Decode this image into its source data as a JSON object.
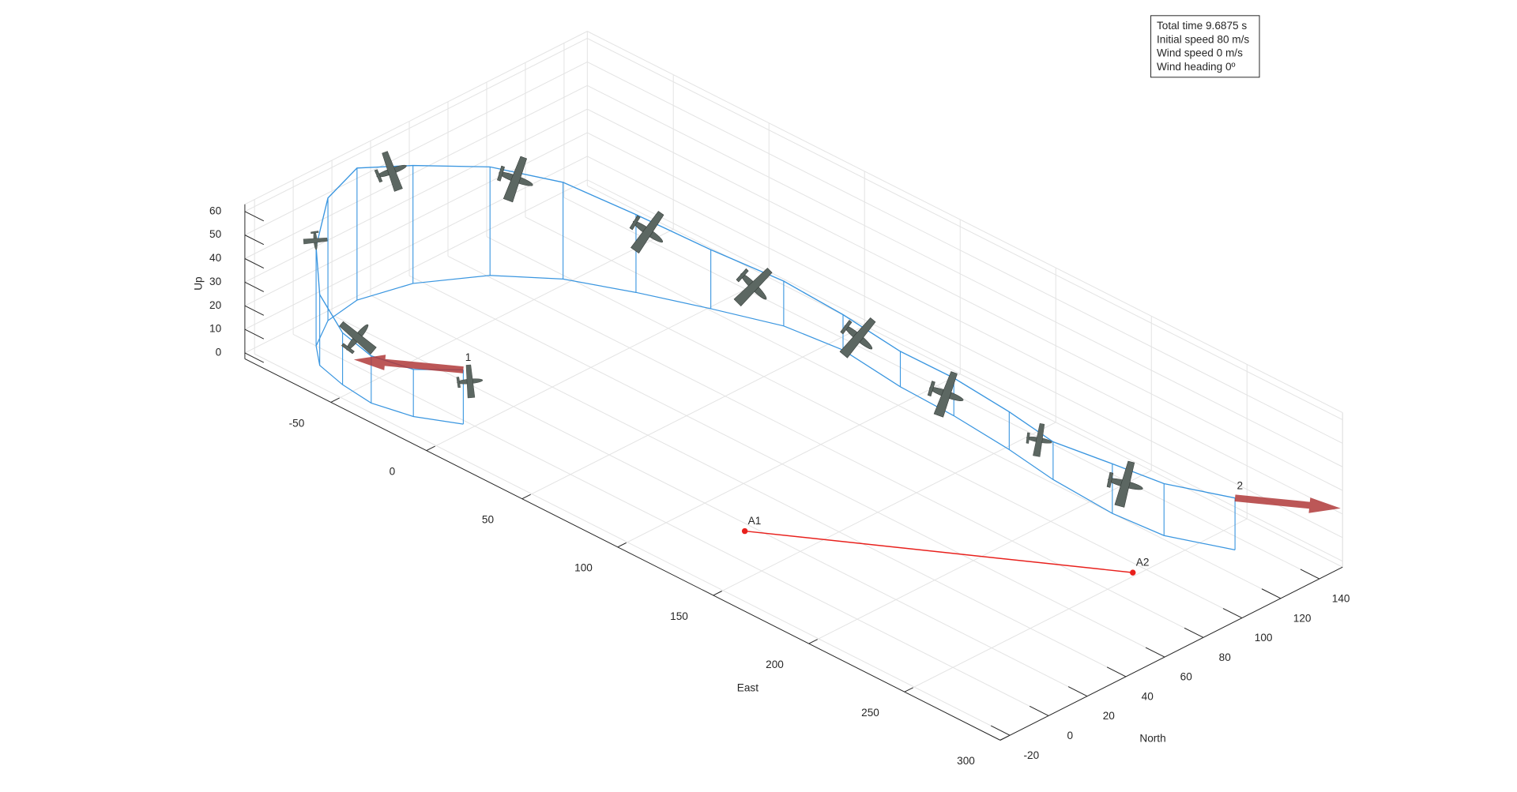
{
  "chart_data": {
    "type": "line3d",
    "xlabel": "East",
    "ylabel": "North",
    "zlabel": "Up",
    "xlim": [
      -95,
      300
    ],
    "ylim": [
      -25,
      152
    ],
    "zlim": [
      -2.5,
      63
    ],
    "xticks": [
      -50,
      0,
      50,
      100,
      150,
      200,
      250,
      300
    ],
    "yticks": [
      -20,
      0,
      20,
      40,
      60,
      80,
      100,
      120,
      140
    ],
    "zticks": [
      0,
      10,
      20,
      30,
      40,
      50,
      60
    ],
    "grid": true,
    "drop_lines": true,
    "series": [
      {
        "color": "#3a96e0",
        "x": [
          -1,
          -18,
          -36,
          -53,
          -69,
          -80,
          -90,
          -93,
          -87,
          -71,
          -50,
          -24,
          4,
          32,
          60,
          94,
          123,
          155,
          182,
          215,
          240,
          266
        ],
        "y": [
          -5,
          -14,
          -18,
          -16,
          -12,
          -3,
          13,
          31,
          54,
          78,
          95,
          107,
          118,
          128,
          131,
          127,
          126,
          123,
          119,
          117,
          119,
          130
        ],
        "z": [
          23,
          20,
          20,
          22,
          30,
          42,
          52,
          56,
          50,
          46,
          41,
          33,
          25,
          19,
          15,
          15,
          16,
          16,
          16,
          21,
          22,
          22
        ]
      }
    ],
    "arrows": [
      {
        "label": "1",
        "color": "#b03a3a",
        "from": [
          -1,
          -5,
          23
        ],
        "to": [
          -35,
          -28,
          23
        ]
      },
      {
        "label": "2",
        "color": "#b03a3a",
        "from": [
          266,
          130,
          22
        ],
        "to": [
          299,
          152,
          22
        ]
      }
    ],
    "points": [
      {
        "label": "A1",
        "color": "#e8201c",
        "x": 128,
        "y": 13,
        "z": 0
      },
      {
        "label": "A2",
        "color": "#e8201c",
        "x": 251,
        "y": 92,
        "z": 0
      }
    ],
    "info": [
      "Total time 9.6875 s",
      "Initial speed 80 m/s",
      "Wind speed 0 m/s",
      "Wind heading 0º"
    ]
  }
}
